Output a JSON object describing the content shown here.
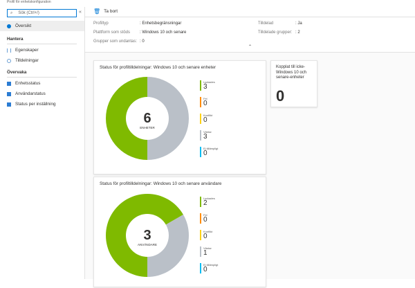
{
  "window_title": "Profil för enhetskonfiguration",
  "sidebar": {
    "search_placeholder": "Sök (Ctrl+/)",
    "collapse": "«",
    "overview": "Översikt",
    "section_manage": "Hantera",
    "properties": "Egenskaper",
    "assignments": "Tilldelningar",
    "section_monitor": "Övervaka",
    "device_status": "Enhetsstatus",
    "user_status": "Användarstatus",
    "per_setting": "Status per inställning"
  },
  "toolbar": {
    "delete": "Ta bort"
  },
  "info": {
    "profile_type_label": "Profiltyp",
    "profile_type": ": Enhetsbegränsningar",
    "platform_label": "Plattform som stöds",
    "platform": ": Windows 10 och senare",
    "excluded_label": "Grupper som undantas:",
    "excluded": ": 0",
    "assigned_label": "Tilldelad",
    "assigned": ": Ja",
    "groups_label": "Tilldelade grupper:",
    "groups": ": 2",
    "collapse_icon": "chevron-up-double"
  },
  "colors": {
    "succeeded": "#7fba00",
    "error": "#ff8c00",
    "conflict": "#fcd116",
    "pending": "#bac0c8",
    "na": "#00bcf2"
  },
  "device_chart": {
    "title": "Status för profiltilldelningar: Windows 10 och senare enheter",
    "total": "6",
    "unit": "ENHETER",
    "legend": [
      {
        "name": "Lyckades",
        "value": 3
      },
      {
        "name": "Fel",
        "value": 0
      },
      {
        "name": "Konflikt",
        "value": 0
      },
      {
        "name": "Väntar",
        "value": 3
      },
      {
        "name": "Ej tillämpligt",
        "value": 0
      }
    ]
  },
  "user_chart": {
    "title": "Status för profiltilldelningar: Windows 10 och senare användare",
    "total": "3",
    "unit": "ANVÄNDARE",
    "legend": [
      {
        "name": "Lyckades",
        "value": 2
      },
      {
        "name": "Fel",
        "value": 0
      },
      {
        "name": "Konflikt",
        "value": 0
      },
      {
        "name": "Väntar",
        "value": 1
      },
      {
        "name": "Ej tillämpligt",
        "value": 0
      }
    ]
  },
  "tile": {
    "title": "Kopplat till icke-Windows 10 och senare-enheter",
    "value": "0"
  }
}
